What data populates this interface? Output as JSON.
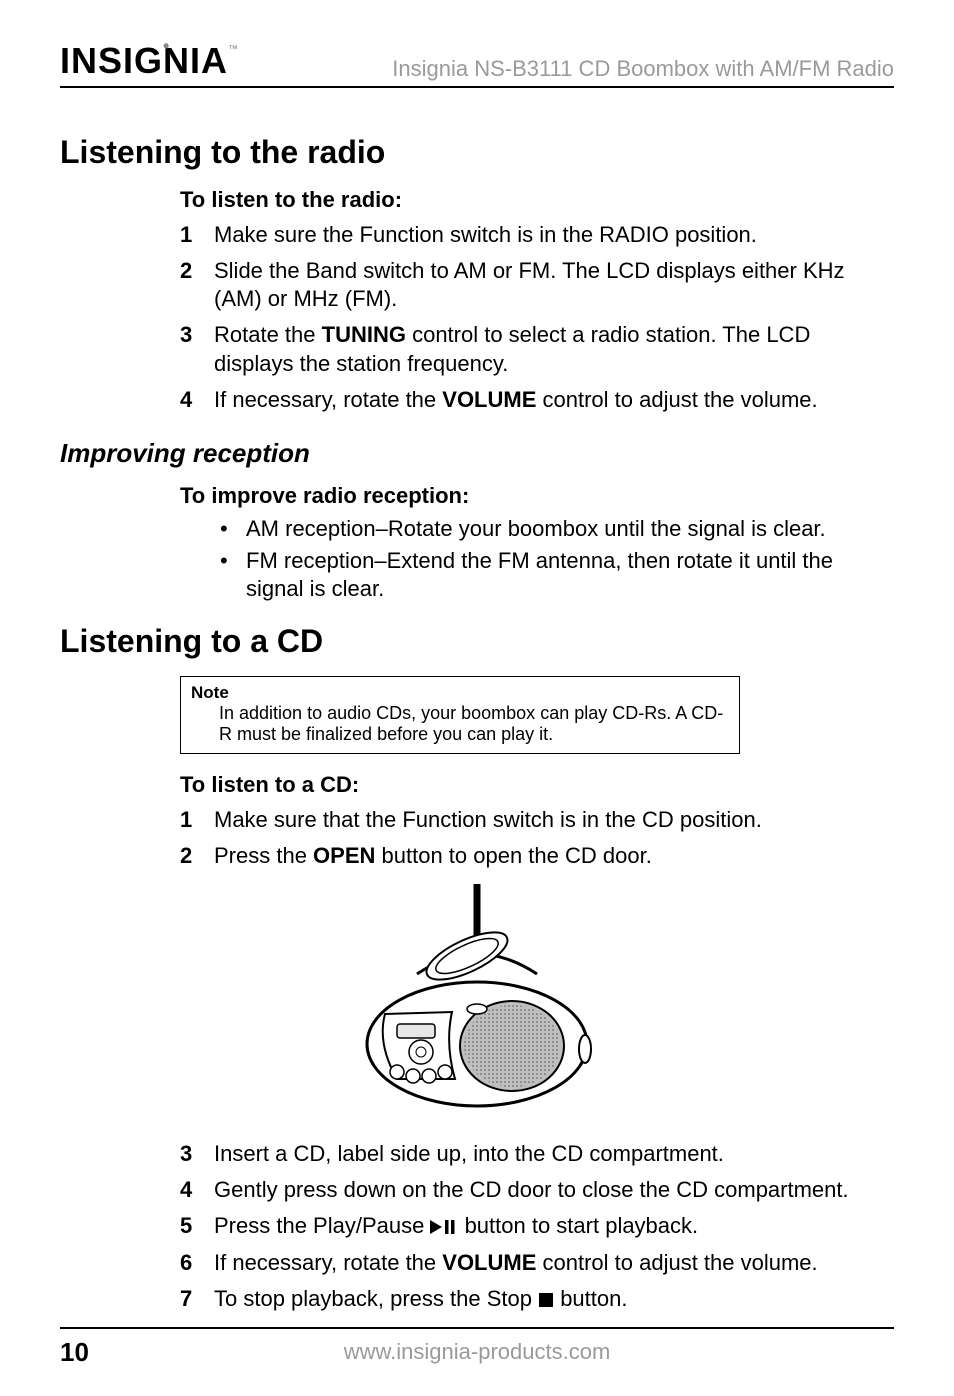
{
  "brand": "INSIGNIA",
  "doc_title": "Insignia NS-B3111 CD Boombox with AM/FM Radio",
  "page_number": "10",
  "footer_url": "www.insignia-products.com",
  "section_radio": {
    "title": "Listening to the radio",
    "lead": "To listen to the radio:",
    "steps": [
      {
        "n": "1",
        "pre": "Make sure the Function switch is in the RADIO position."
      },
      {
        "n": "2",
        "pre": "Slide the Band switch to AM or FM. The LCD displays either KHz (AM) or MHz (FM)."
      },
      {
        "n": "3",
        "pre": "Rotate the ",
        "bold": "TUNING",
        "post": " control to select a radio station. The LCD displays the station frequency."
      },
      {
        "n": "4",
        "pre": "If necessary, rotate the ",
        "bold": "VOLUME",
        "post": " control to adjust the volume."
      }
    ]
  },
  "subsection_reception": {
    "title": "Improving reception",
    "lead": "To improve radio reception:",
    "bullets": [
      "AM reception–Rotate your boombox until the signal is clear.",
      "FM reception–Extend the FM antenna, then rotate it until the signal is clear."
    ]
  },
  "section_cd": {
    "title": "Listening to a CD",
    "note_title": "Note",
    "note_body": "In addition to audio CDs, your boombox can play CD-Rs. A CD-R must be finalized before you can play it.",
    "lead": "To listen to a CD:",
    "steps": [
      {
        "n": "1",
        "pre": "Make sure that the Function switch is in the CD position."
      },
      {
        "n": "2",
        "pre": "Press the ",
        "bold": "OPEN",
        "post": " button to open the CD door."
      },
      {
        "n": "3",
        "pre": "Insert a CD, label side up, into the CD compartment."
      },
      {
        "n": "4",
        "pre": "Gently press down on the CD door to close the CD compartment."
      },
      {
        "n": "5",
        "pre": "Press the Play/Pause ",
        "icon": "playpause",
        "post": " button to start playback."
      },
      {
        "n": "6",
        "pre": "If necessary, rotate the ",
        "bold": "VOLUME",
        "post": " control to adjust the volume."
      },
      {
        "n": "7",
        "pre": "To stop playback, press the Stop ",
        "icon": "stop",
        "post": " button."
      }
    ]
  },
  "colors": {
    "text": "#000000",
    "muted": "#9a9a9a",
    "bg": "#ffffff",
    "rule": "#000000"
  }
}
